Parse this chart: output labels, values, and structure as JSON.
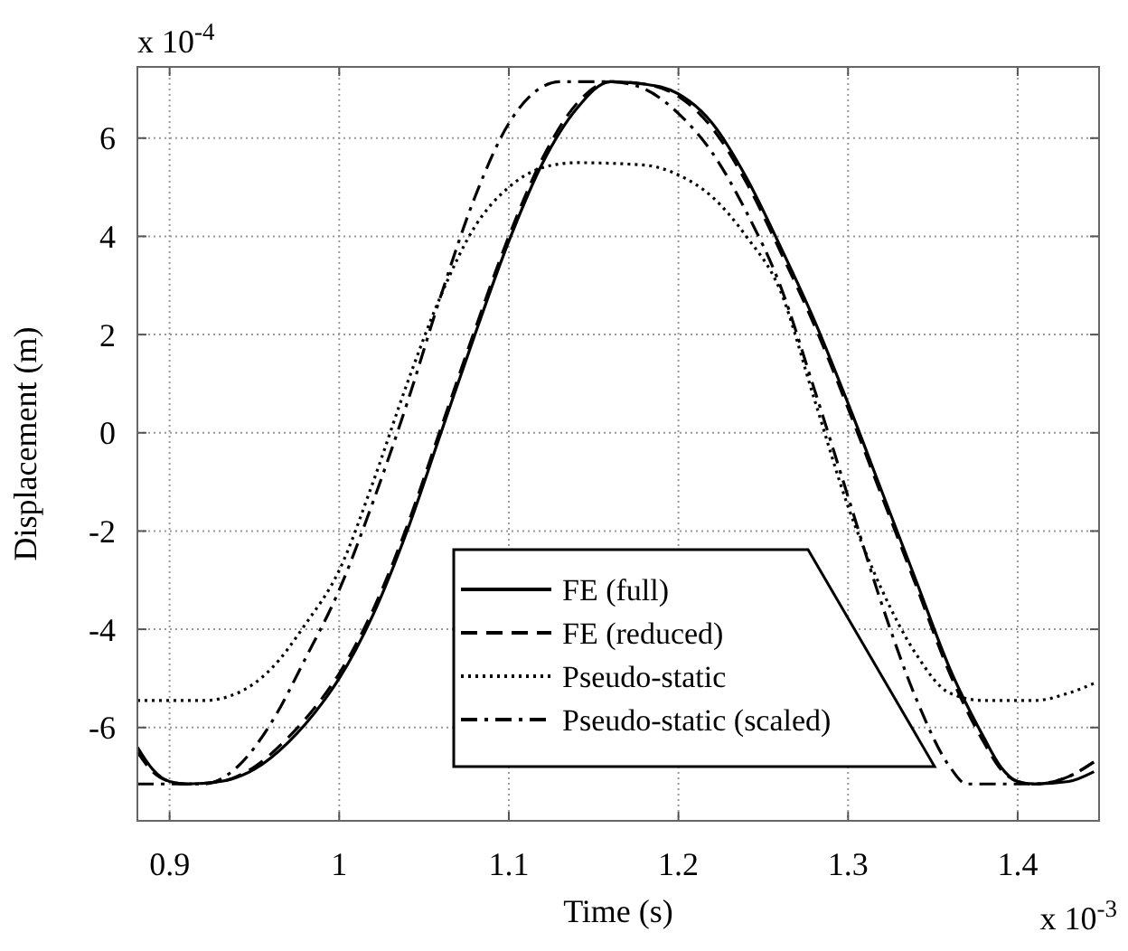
{
  "chart_data": {
    "type": "line",
    "xlabel": "Time (s)",
    "ylabel": "Displacement (m)",
    "annotations": [
      "x 10$^{-4}$",
      "x 10$^{-3}$"
    ],
    "xlim": [
      0.881,
      1.448
    ],
    "xticks": [
      {
        "value": 0.9,
        "label": "0.9"
      },
      1,
      1.1,
      1.2,
      1.3,
      1.4
    ],
    "ylim": [
      -7.9,
      7.45
    ],
    "yticks": [
      6,
      4,
      2,
      0,
      -2,
      -4,
      -6
    ],
    "grid": true,
    "legend": "bottom",
    "series": [
      {
        "name": "FE (full)",
        "color": "#000000",
        "line_style": "solid",
        "x": [
          0.881,
          0.89,
          0.9,
          0.91,
          0.93,
          0.95,
          0.97,
          0.99,
          1.0,
          1.02,
          1.04,
          1.06,
          1.08,
          1.1,
          1.12,
          1.14,
          1.16,
          1.18,
          1.2,
          1.22,
          1.24,
          1.26,
          1.28,
          1.3,
          1.32,
          1.34,
          1.36,
          1.38,
          1.39,
          1.4,
          1.41,
          1.43,
          1.445
        ],
        "values": [
          -6.4,
          -6.85,
          -7.1,
          -7.15,
          -7.1,
          -6.85,
          -6.3,
          -5.5,
          -5.0,
          -3.7,
          -2.0,
          0.0,
          2.0,
          3.9,
          5.5,
          6.6,
          7.15,
          7.1,
          6.9,
          6.3,
          5.2,
          3.8,
          2.3,
          0.6,
          -1.2,
          -3.0,
          -4.8,
          -6.2,
          -6.8,
          -7.1,
          -7.15,
          -7.1,
          -6.9
        ]
      },
      {
        "name": "FE (reduced)",
        "color": "#000000",
        "line_style": "dashed",
        "x": [
          0.881,
          0.89,
          0.9,
          0.91,
          0.93,
          0.95,
          0.97,
          0.99,
          1.0,
          1.02,
          1.04,
          1.06,
          1.08,
          1.1,
          1.12,
          1.14,
          1.16,
          1.18,
          1.2,
          1.22,
          1.24,
          1.26,
          1.28,
          1.3,
          1.32,
          1.34,
          1.36,
          1.38,
          1.39,
          1.4,
          1.41,
          1.43,
          1.445
        ],
        "values": [
          -6.5,
          -6.9,
          -7.1,
          -7.15,
          -7.1,
          -6.8,
          -6.2,
          -5.4,
          -4.9,
          -3.6,
          -1.9,
          0.1,
          2.1,
          4.0,
          5.6,
          6.7,
          7.15,
          7.1,
          6.85,
          6.2,
          5.1,
          3.7,
          2.2,
          0.5,
          -1.3,
          -3.1,
          -4.9,
          -6.3,
          -6.85,
          -7.1,
          -7.15,
          -7.0,
          -6.7
        ]
      },
      {
        "name": "Pseudo-static",
        "color": "#000000",
        "line_style": "dotted",
        "x": [
          0.881,
          0.92,
          0.94,
          0.96,
          0.98,
          1.0,
          1.02,
          1.04,
          1.06,
          1.08,
          1.1,
          1.12,
          1.14,
          1.18,
          1.2,
          1.22,
          1.24,
          1.26,
          1.28,
          1.3,
          1.32,
          1.34,
          1.36,
          1.38,
          1.41,
          1.43,
          1.445
        ],
        "values": [
          -5.45,
          -5.45,
          -5.3,
          -4.8,
          -3.9,
          -2.8,
          -1.0,
          1.0,
          2.8,
          4.2,
          5.0,
          5.4,
          5.5,
          5.45,
          5.25,
          4.8,
          4.0,
          2.9,
          0.7,
          -1.5,
          -3.2,
          -4.5,
          -5.3,
          -5.45,
          -5.45,
          -5.3,
          -5.1
        ]
      },
      {
        "name": "Pseudo-static (scaled)",
        "color": "#000000",
        "line_style": "dashdot",
        "x": [
          0.881,
          0.92,
          0.94,
          0.96,
          0.98,
          1.0,
          1.02,
          1.04,
          1.06,
          1.08,
          1.1,
          1.12,
          1.13,
          1.16,
          1.18,
          1.2,
          1.22,
          1.24,
          1.26,
          1.28,
          1.3,
          1.32,
          1.34,
          1.36,
          1.37,
          1.41,
          1.43,
          1.445
        ],
        "values": [
          -7.15,
          -7.15,
          -6.8,
          -5.9,
          -4.6,
          -3.2,
          -1.4,
          0.6,
          2.8,
          4.8,
          6.3,
          7.05,
          7.15,
          7.15,
          7.0,
          6.5,
          5.7,
          4.5,
          3.0,
          0.9,
          -1.3,
          -3.5,
          -5.4,
          -6.8,
          -7.15,
          -7.15,
          -7.0,
          -6.7
        ]
      }
    ]
  }
}
